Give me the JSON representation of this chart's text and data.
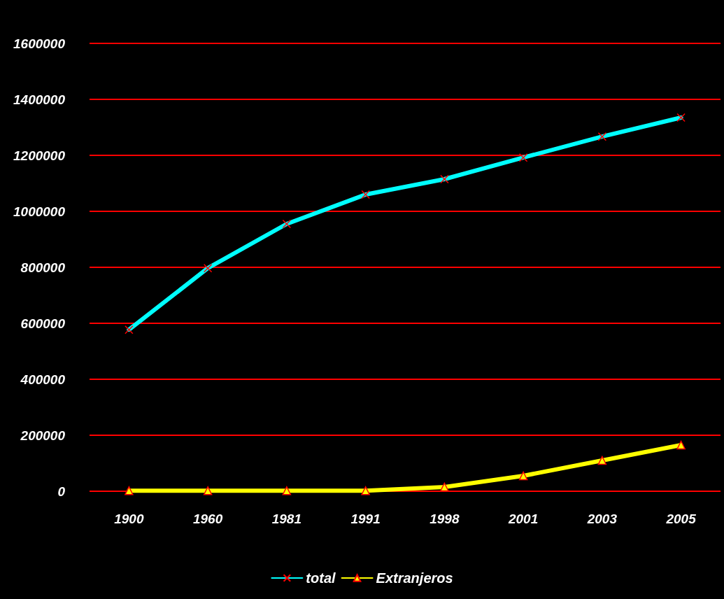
{
  "chart_data": {
    "type": "line",
    "categories": [
      "1900",
      "1960",
      "1981",
      "1991",
      "1998",
      "2001",
      "2003",
      "2005"
    ],
    "series": [
      {
        "name": "total",
        "color": "#00ffff",
        "marker": "cross",
        "values": [
          577000,
          797000,
          955000,
          1060000,
          1115000,
          1192000,
          1267000,
          1335000
        ]
      },
      {
        "name": "Extranjeros",
        "color": "#ffff00",
        "marker": "triangle",
        "values": [
          2000,
          2000,
          2000,
          2000,
          15000,
          55000,
          110000,
          165000
        ]
      }
    ],
    "ylim": [
      0,
      1600000
    ],
    "yticks": [
      0,
      200000,
      400000,
      600000,
      800000,
      1000000,
      1200000,
      1400000,
      1600000
    ],
    "grid": "y",
    "legend": "bottom",
    "line_style": "solid"
  }
}
